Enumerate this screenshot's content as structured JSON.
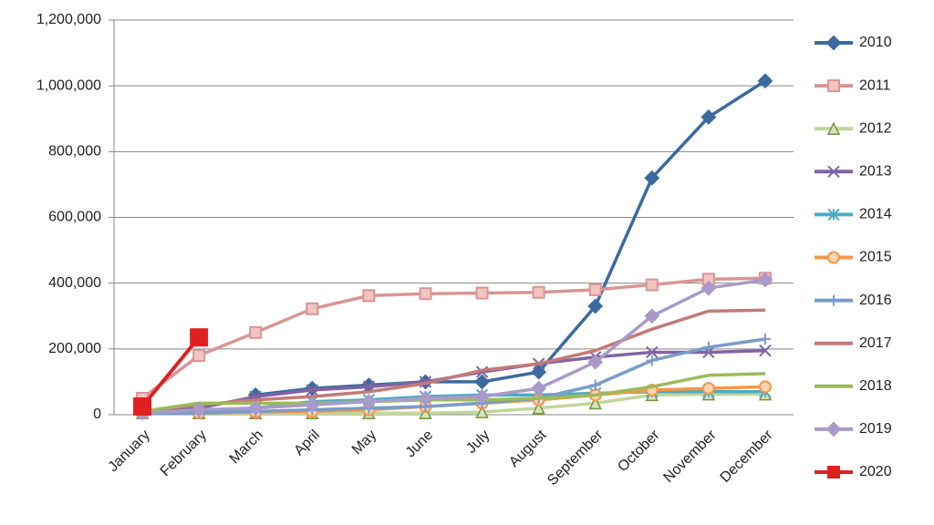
{
  "chart_data": {
    "type": "line",
    "categories": [
      "January",
      "February",
      "March",
      "April",
      "May",
      "June",
      "July",
      "August",
      "September",
      "October",
      "November",
      "December"
    ],
    "ylim": [
      0,
      1200000
    ],
    "yticks": [
      0,
      {
        "value": 200000,
        "label": "200,000"
      },
      {
        "value": 400000,
        "label": "400,000"
      },
      {
        "value": 600000,
        "label": "600,000"
      },
      {
        "value": 800000,
        "label": "800,000"
      },
      {
        "value": 1000000,
        "label": "1,000,000"
      },
      {
        "value": 1200000,
        "label": "1,200,000"
      }
    ],
    "grid": true,
    "legend": "right",
    "series": [
      {
        "name": "2010",
        "color": "#3b6aa0",
        "marker": "diamond",
        "values": [
          null,
          null,
          60000,
          80000,
          90000,
          100000,
          100000,
          130000,
          330000,
          720000,
          905000,
          1015000
        ]
      },
      {
        "name": "2011",
        "color": "#d99694",
        "marker": "square",
        "values": [
          50000,
          180000,
          250000,
          322000,
          362000,
          368000,
          370000,
          372000,
          380000,
          395000,
          412000,
          415000
        ]
      },
      {
        "name": "2012",
        "color": "#c3d69b",
        "marker": "triangle",
        "values": [
          5000,
          5000,
          5000,
          5000,
          5000,
          5000,
          8000,
          20000,
          35000,
          60000,
          62000,
          62000
        ]
      },
      {
        "name": "2013",
        "color": "#8064a2",
        "marker": "x",
        "values": [
          10000,
          20000,
          55000,
          75000,
          85000,
          100000,
          130000,
          155000,
          175000,
          190000,
          190000,
          195000
        ]
      },
      {
        "name": "2014",
        "color": "#4bacc6",
        "marker": "asterisk",
        "values": [
          5000,
          10000,
          20000,
          40000,
          45000,
          55000,
          60000,
          60000,
          65000,
          70000,
          70000,
          70000
        ]
      },
      {
        "name": "2015",
        "color": "#f79646",
        "marker": "circle",
        "values": [
          5000,
          5000,
          8000,
          10000,
          15000,
          25000,
          35000,
          45000,
          60000,
          75000,
          80000,
          85000
        ]
      },
      {
        "name": "2016",
        "color": "#7a9cc9",
        "marker": "plus",
        "values": [
          5000,
          5000,
          10000,
          15000,
          20000,
          25000,
          35000,
          50000,
          90000,
          165000,
          205000,
          230000
        ]
      },
      {
        "name": "2017",
        "color": "#c27b78",
        "marker": "none",
        "values": [
          10000,
          30000,
          45000,
          55000,
          70000,
          95000,
          135000,
          155000,
          195000,
          260000,
          315000,
          318000
        ]
      },
      {
        "name": "2018",
        "color": "#9bbb59",
        "marker": "none",
        "values": [
          10000,
          35000,
          35000,
          35000,
          40000,
          45000,
          45000,
          50000,
          60000,
          85000,
          120000,
          125000
        ]
      },
      {
        "name": "2019",
        "color": "#a99bc9",
        "marker": "diamond",
        "values": [
          5000,
          15000,
          20000,
          30000,
          40000,
          50000,
          55000,
          80000,
          160000,
          300000,
          385000,
          410000
        ]
      },
      {
        "name": "2020",
        "color": "#e02020",
        "marker": "square",
        "values": [
          25000,
          235000,
          null,
          null,
          null,
          null,
          null,
          null,
          null,
          null,
          null,
          null
        ]
      }
    ]
  }
}
